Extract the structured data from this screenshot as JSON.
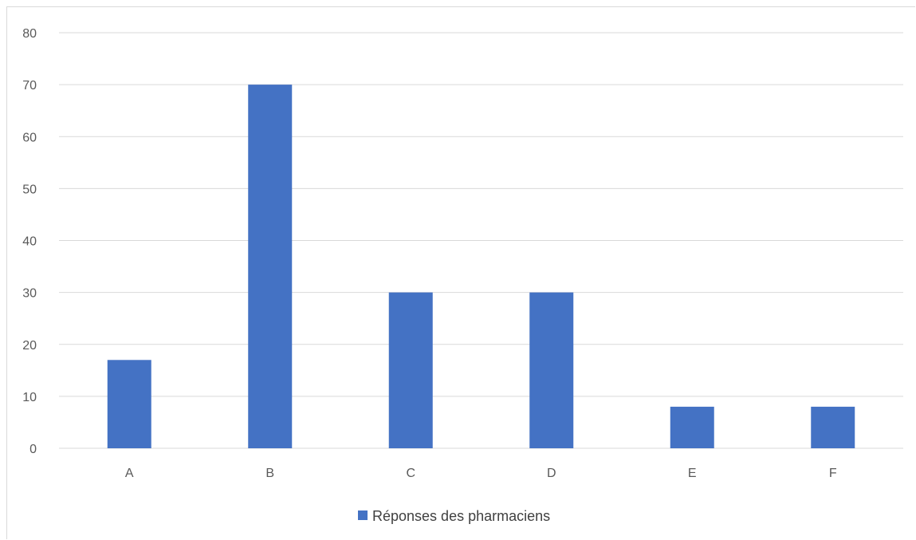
{
  "chart_data": {
    "type": "bar",
    "categories": [
      "A",
      "B",
      "C",
      "D",
      "E",
      "F"
    ],
    "series": [
      {
        "name": "Réponses des pharmaciens",
        "values": [
          17,
          70,
          30,
          30,
          8,
          8
        ],
        "color": "#4472c4"
      }
    ],
    "ylim": [
      0,
      80
    ],
    "yticks": [
      0,
      10,
      20,
      30,
      40,
      50,
      60,
      70,
      80
    ],
    "grid": true,
    "legend": "bottom",
    "colors": {
      "grid": "#d9d9d9",
      "axis_text": "#595959"
    }
  }
}
